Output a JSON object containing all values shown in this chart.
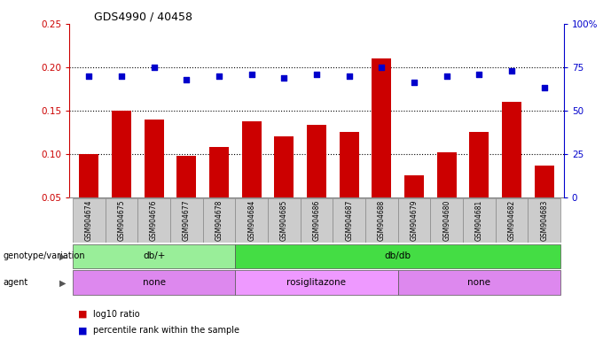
{
  "title": "GDS4990 / 40458",
  "samples": [
    "GSM904674",
    "GSM904675",
    "GSM904676",
    "GSM904677",
    "GSM904678",
    "GSM904684",
    "GSM904685",
    "GSM904686",
    "GSM904687",
    "GSM904688",
    "GSM904679",
    "GSM904680",
    "GSM904681",
    "GSM904682",
    "GSM904683"
  ],
  "log10_ratio": [
    0.1,
    0.15,
    0.14,
    0.098,
    0.108,
    0.138,
    0.12,
    0.133,
    0.125,
    0.21,
    0.075,
    0.102,
    0.125,
    0.16,
    0.086
  ],
  "percentile_rank": [
    70,
    70,
    75,
    68,
    70,
    71,
    69,
    71,
    70,
    75,
    66,
    70,
    71,
    73,
    63
  ],
  "bar_color": "#cc0000",
  "dot_color": "#0000cc",
  "ylim_left": [
    0.05,
    0.25
  ],
  "ylim_right": [
    0,
    100
  ],
  "yticks_left": [
    0.05,
    0.1,
    0.15,
    0.2,
    0.25
  ],
  "yticks_right": [
    0,
    25,
    50,
    75,
    100
  ],
  "ytick_labels_right": [
    "0",
    "25",
    "50",
    "75",
    "100%"
  ],
  "grid_values": [
    0.1,
    0.15,
    0.2
  ],
  "genotype_groups": [
    {
      "label": "db/+",
      "start": 0,
      "end": 5,
      "color": "#99ee99"
    },
    {
      "label": "db/db",
      "start": 5,
      "end": 15,
      "color": "#44dd44"
    }
  ],
  "agent_groups": [
    {
      "label": "none",
      "start": 0,
      "end": 5,
      "color": "#dd88ee"
    },
    {
      "label": "rosiglitazone",
      "start": 5,
      "end": 10,
      "color": "#ee99ff"
    },
    {
      "label": "none",
      "start": 10,
      "end": 15,
      "color": "#dd88ee"
    }
  ],
  "genotype_label": "genotype/variation",
  "agent_label": "agent",
  "legend_red": "log10 ratio",
  "legend_blue": "percentile rank within the sample",
  "background_color": "#ffffff",
  "tick_area_color": "#cccccc"
}
